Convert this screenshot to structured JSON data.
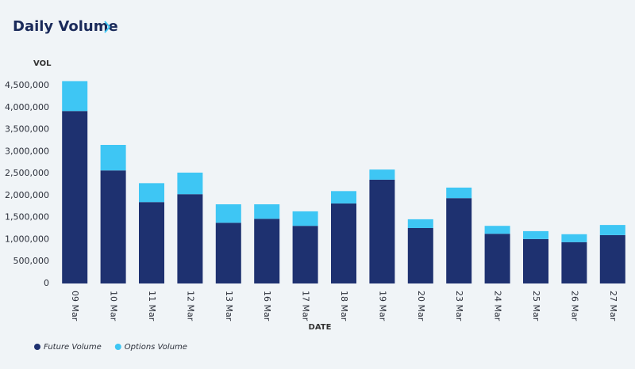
{
  "chart_data": {
    "type": "stacked_bar",
    "title": "Daily Volume",
    "y_label": "VOL",
    "x_label": "DATE",
    "categories": [
      "09 Mar",
      "10 Mar",
      "11 Mar",
      "12 Mar",
      "13 Mar",
      "16 Mar",
      "17 Mar",
      "18 Mar",
      "19 Mar",
      "20 Mar",
      "23 Mar",
      "24 Mar",
      "25 Mar",
      "26 Mar",
      "27 Mar"
    ],
    "series": [
      {
        "name": "Future Volume",
        "color": "#1e3170",
        "values": [
          3920000,
          2570000,
          1850000,
          2030000,
          1380000,
          1470000,
          1310000,
          1820000,
          2360000,
          1260000,
          1940000,
          1130000,
          1010000,
          940000,
          1100000
        ]
      },
      {
        "name": "Options Volume",
        "color": "#3ec6f4",
        "values": [
          680000,
          580000,
          430000,
          490000,
          420000,
          330000,
          330000,
          280000,
          230000,
          200000,
          240000,
          180000,
          180000,
          180000,
          230000
        ]
      }
    ],
    "ylim": [
      0,
      4500000
    ],
    "yticks": [
      0,
      {
        "value": 500000,
        "label": "500,000"
      },
      {
        "value": 1000000,
        "label": "1,000,000"
      },
      {
        "value": 1500000,
        "label": "1,500,000"
      },
      {
        "value": 2000000,
        "label": "2,000,000"
      },
      {
        "value": 2500000,
        "label": "2,500,000"
      },
      {
        "value": 3000000,
        "label": "3,000,000"
      },
      {
        "value": 3500000,
        "label": "3,500,000"
      },
      {
        "value": 4000000,
        "label": "4,000,000"
      },
      {
        "value": 4500000,
        "label": "4,500,000"
      }
    ],
    "legend": "bottom-left"
  }
}
